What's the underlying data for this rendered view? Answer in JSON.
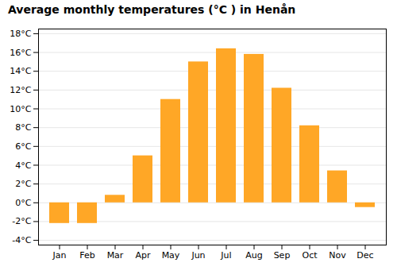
{
  "chart_data": {
    "type": "bar",
    "title": "Average monthly temperatures (°C ) in Henån",
    "categories": [
      "Jan",
      "Feb",
      "Mar",
      "Apr",
      "May",
      "Jun",
      "Jul",
      "Aug",
      "Sep",
      "Oct",
      "Nov",
      "Dec"
    ],
    "values": [
      -2.2,
      -2.2,
      0.8,
      5.0,
      11.0,
      15.0,
      16.4,
      15.8,
      12.2,
      8.2,
      3.4,
      -0.5
    ],
    "color": "#FFA726",
    "ylim": [
      -4.5,
      18.5
    ],
    "yticks": [
      {
        "value": -4,
        "label": "-4°C"
      },
      {
        "value": -2,
        "label": "-2°C"
      },
      {
        "value": 0,
        "label": "0°C"
      },
      {
        "value": 2,
        "label": "2°C"
      },
      {
        "value": 4,
        "label": "4°C"
      },
      {
        "value": 6,
        "label": "6°C"
      },
      {
        "value": 8,
        "label": "8°C"
      },
      {
        "value": 10,
        "label": "10°C"
      },
      {
        "value": 12,
        "label": "12°C"
      },
      {
        "value": 14,
        "label": "14°C"
      },
      {
        "value": 16,
        "label": "16°C"
      },
      {
        "value": 18,
        "label": "18°C"
      }
    ],
    "grid": true
  }
}
